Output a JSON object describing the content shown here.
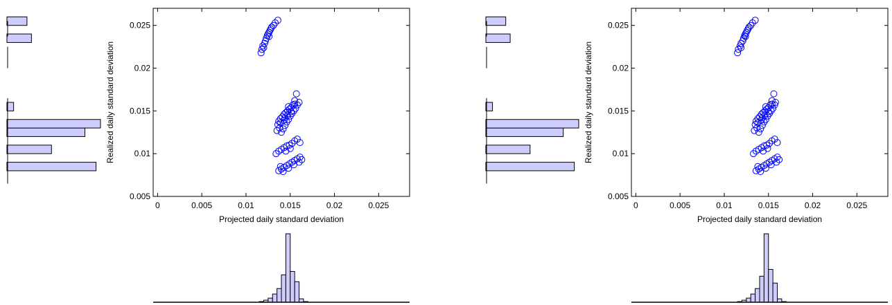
{
  "chart_data": [
    {
      "type": "scatter",
      "xlabel": "Projected daily standard deviation",
      "ylabel": "Realized daily standard deviation",
      "xlim": [
        -0.0005,
        0.0285
      ],
      "ylim": [
        0.005,
        0.027
      ],
      "xticks": [
        0,
        0.005,
        0.01,
        0.015,
        0.02,
        0.025
      ],
      "xtick_labels": [
        "0",
        "0.005",
        "0.01",
        "0.015",
        "0.02",
        "0.025"
      ],
      "yticks": [
        0.005,
        0.01,
        0.015,
        0.02,
        0.025
      ],
      "ytick_labels": [
        "0.005",
        "0.01",
        "0.015",
        "0.02",
        "0.025"
      ],
      "grid": false,
      "marker": "circle",
      "marker_color": "#0000ff",
      "clusters": [
        {
          "points": [
            [
              0.0118,
              0.0222
            ],
            [
              0.0119,
              0.0226
            ],
            [
              0.0121,
              0.0229
            ],
            [
              0.0122,
              0.0232
            ],
            [
              0.0123,
              0.0235
            ],
            [
              0.0124,
              0.0238
            ],
            [
              0.0125,
              0.024
            ],
            [
              0.0126,
              0.0242
            ],
            [
              0.0127,
              0.0244
            ],
            [
              0.0128,
              0.0246
            ],
            [
              0.0129,
              0.0248
            ],
            [
              0.0131,
              0.025
            ],
            [
              0.0133,
              0.0253
            ],
            [
              0.0136,
              0.0256
            ],
            [
              0.0117,
              0.0218
            ],
            [
              0.012,
              0.0224
            ],
            [
              0.0126,
              0.0237
            ]
          ]
        },
        {
          "points": [
            [
              0.014,
              0.0125
            ],
            [
              0.0138,
              0.013
            ],
            [
              0.0136,
              0.0134
            ],
            [
              0.0137,
              0.0138
            ],
            [
              0.0139,
              0.0141
            ],
            [
              0.0141,
              0.0143
            ],
            [
              0.0143,
              0.0146
            ],
            [
              0.0145,
              0.0148
            ],
            [
              0.0147,
              0.015
            ],
            [
              0.0149,
              0.0152
            ],
            [
              0.0151,
              0.0154
            ],
            [
              0.0153,
              0.0157
            ],
            [
              0.0155,
              0.0162
            ],
            [
              0.0157,
              0.017
            ],
            [
              0.0142,
              0.0129
            ],
            [
              0.0144,
              0.0133
            ],
            [
              0.0146,
              0.0137
            ],
            [
              0.0148,
              0.014
            ],
            [
              0.015,
              0.0144
            ],
            [
              0.0152,
              0.0147
            ],
            [
              0.0154,
              0.015
            ],
            [
              0.0156,
              0.0153
            ],
            [
              0.0158,
              0.0157
            ],
            [
              0.016,
              0.016
            ],
            [
              0.0135,
              0.0127
            ],
            [
              0.0139,
              0.0136
            ],
            [
              0.0143,
              0.0139
            ],
            [
              0.0147,
              0.0145
            ],
            [
              0.0151,
              0.0149
            ],
            [
              0.0155,
              0.0158
            ],
            [
              0.0144,
              0.0142
            ],
            [
              0.0148,
              0.0155
            ]
          ]
        },
        {
          "points": [
            [
              0.0134,
              0.01
            ],
            [
              0.0137,
              0.0103
            ],
            [
              0.014,
              0.0105
            ],
            [
              0.0143,
              0.0107
            ],
            [
              0.0146,
              0.0109
            ],
            [
              0.0149,
              0.011
            ],
            [
              0.0152,
              0.0112
            ],
            [
              0.0155,
              0.0115
            ],
            [
              0.0158,
              0.0117
            ],
            [
              0.0161,
              0.0113
            ],
            [
              0.0145,
              0.0103
            ],
            [
              0.015,
              0.0106
            ]
          ]
        },
        {
          "points": [
            [
              0.0137,
              0.008
            ],
            [
              0.014,
              0.0082
            ],
            [
              0.0143,
              0.0084
            ],
            [
              0.0146,
              0.0086
            ],
            [
              0.0149,
              0.0088
            ],
            [
              0.0152,
              0.009
            ],
            [
              0.0155,
              0.0092
            ],
            [
              0.0158,
              0.0094
            ],
            [
              0.0161,
              0.0096
            ],
            [
              0.0163,
              0.0093
            ],
            [
              0.0142,
              0.0079
            ],
            [
              0.0148,
              0.0083
            ],
            [
              0.0154,
              0.0087
            ],
            [
              0.016,
              0.009
            ],
            [
              0.0139,
              0.0085
            ]
          ]
        }
      ]
    },
    {
      "type": "scatter",
      "xlabel": "Projected daily standard deviation",
      "ylabel": "Realized daily standard deviation",
      "xlim": [
        -0.0005,
        0.0285
      ],
      "ylim": [
        0.005,
        0.027
      ],
      "xticks": [
        0,
        0.005,
        0.01,
        0.015,
        0.02,
        0.025
      ],
      "xtick_labels": [
        "0",
        "0.005",
        "0.01",
        "0.015",
        "0.02",
        "0.025"
      ],
      "yticks": [
        0.005,
        0.01,
        0.015,
        0.02,
        0.025
      ],
      "ytick_labels": [
        "0.005",
        "0.01",
        "0.015",
        "0.02",
        "0.025"
      ],
      "grid": false,
      "marker": "circle",
      "marker_color": "#0000ff",
      "clusters": [
        {
          "points": [
            [
              0.0116,
              0.0222
            ],
            [
              0.0118,
              0.0226
            ],
            [
              0.0119,
              0.0229
            ],
            [
              0.0121,
              0.0232
            ],
            [
              0.0122,
              0.0235
            ],
            [
              0.0123,
              0.0238
            ],
            [
              0.0124,
              0.024
            ],
            [
              0.0125,
              0.0242
            ],
            [
              0.0126,
              0.0244
            ],
            [
              0.0127,
              0.0246
            ],
            [
              0.0128,
              0.0248
            ],
            [
              0.013,
              0.025
            ],
            [
              0.0132,
              0.0253
            ],
            [
              0.0135,
              0.0256
            ],
            [
              0.0115,
              0.0218
            ],
            [
              0.0119,
              0.0224
            ],
            [
              0.0124,
              0.0237
            ]
          ]
        },
        {
          "points": [
            [
              0.0139,
              0.0125
            ],
            [
              0.0137,
              0.013
            ],
            [
              0.0135,
              0.0134
            ],
            [
              0.0136,
              0.0138
            ],
            [
              0.0138,
              0.0141
            ],
            [
              0.014,
              0.0143
            ],
            [
              0.0142,
              0.0146
            ],
            [
              0.0144,
              0.0148
            ],
            [
              0.0146,
              0.015
            ],
            [
              0.0148,
              0.0152
            ],
            [
              0.015,
              0.0154
            ],
            [
              0.0152,
              0.0157
            ],
            [
              0.0154,
              0.0162
            ],
            [
              0.0156,
              0.017
            ],
            [
              0.0141,
              0.0129
            ],
            [
              0.0143,
              0.0133
            ],
            [
              0.0145,
              0.0137
            ],
            [
              0.0147,
              0.014
            ],
            [
              0.0149,
              0.0144
            ],
            [
              0.0151,
              0.0147
            ],
            [
              0.0153,
              0.015
            ],
            [
              0.0155,
              0.0153
            ],
            [
              0.0157,
              0.0157
            ],
            [
              0.0158,
              0.016
            ],
            [
              0.0134,
              0.0127
            ],
            [
              0.0138,
              0.0136
            ],
            [
              0.0142,
              0.0139
            ],
            [
              0.0146,
              0.0145
            ],
            [
              0.015,
              0.0149
            ],
            [
              0.0154,
              0.0158
            ],
            [
              0.0143,
              0.0142
            ],
            [
              0.0147,
              0.0155
            ]
          ]
        },
        {
          "points": [
            [
              0.0133,
              0.01
            ],
            [
              0.0136,
              0.0103
            ],
            [
              0.0139,
              0.0105
            ],
            [
              0.0142,
              0.0107
            ],
            [
              0.0145,
              0.0109
            ],
            [
              0.0148,
              0.011
            ],
            [
              0.0151,
              0.0112
            ],
            [
              0.0154,
              0.0115
            ],
            [
              0.0157,
              0.0117
            ],
            [
              0.016,
              0.0113
            ],
            [
              0.0144,
              0.0103
            ],
            [
              0.0149,
              0.0106
            ]
          ]
        },
        {
          "points": [
            [
              0.0136,
              0.008
            ],
            [
              0.0139,
              0.0082
            ],
            [
              0.0142,
              0.0084
            ],
            [
              0.0145,
              0.0086
            ],
            [
              0.0148,
              0.0088
            ],
            [
              0.0151,
              0.009
            ],
            [
              0.0154,
              0.0092
            ],
            [
              0.0157,
              0.0094
            ],
            [
              0.016,
              0.0096
            ],
            [
              0.0162,
              0.0093
            ],
            [
              0.0141,
              0.0079
            ],
            [
              0.0147,
              0.0083
            ],
            [
              0.0153,
              0.0087
            ],
            [
              0.0159,
              0.009
            ],
            [
              0.0138,
              0.0085
            ]
          ]
        }
      ]
    },
    {
      "type": "bar",
      "orientation": "horizontal",
      "role": "marginal histogram of realized standard deviation (left of chart 1)",
      "bins": [
        [
          0.007,
          0.008
        ],
        [
          0.008,
          0.009
        ],
        [
          0.009,
          0.01
        ],
        [
          0.01,
          0.011
        ],
        [
          0.011,
          0.012
        ],
        [
          0.012,
          0.013
        ],
        [
          0.013,
          0.014
        ],
        [
          0.014,
          0.015
        ],
        [
          0.015,
          0.016
        ],
        [
          0.016,
          0.017
        ],
        [
          0.017,
          0.018
        ],
        [
          0.018,
          0.019
        ],
        [
          0.019,
          0.02
        ],
        [
          0.02,
          0.021
        ],
        [
          0.021,
          0.022
        ],
        [
          0.022,
          0.023
        ],
        [
          0.023,
          0.024
        ],
        [
          0.024,
          0.025
        ],
        [
          0.025,
          0.026
        ]
      ],
      "values": [
        0,
        40,
        0,
        20,
        0,
        35,
        42,
        0,
        3,
        0,
        0,
        0,
        0,
        0,
        0,
        0,
        11,
        0,
        9
      ],
      "bar_color": "#ccccff",
      "edge_color": "#000000"
    },
    {
      "type": "bar",
      "orientation": "vertical",
      "role": "marginal histogram of projected standard deviation (below chart 1)",
      "bin_width": 0.0005,
      "bin_starts": [
        0.0115,
        0.012,
        0.0125,
        0.013,
        0.0135,
        0.014,
        0.0145,
        0.015,
        0.0155,
        0.016,
        0.0165
      ],
      "values": [
        1,
        3,
        6,
        12,
        20,
        40,
        100,
        45,
        30,
        5,
        1
      ],
      "bar_color": "#ccccff",
      "edge_color": "#000000"
    },
    {
      "type": "bar",
      "orientation": "horizontal",
      "role": "marginal histogram of realized standard deviation (left of chart 2)",
      "bins": [
        [
          0.007,
          0.008
        ],
        [
          0.008,
          0.009
        ],
        [
          0.009,
          0.01
        ],
        [
          0.01,
          0.011
        ],
        [
          0.011,
          0.012
        ],
        [
          0.012,
          0.013
        ],
        [
          0.013,
          0.014
        ],
        [
          0.014,
          0.015
        ],
        [
          0.015,
          0.016
        ],
        [
          0.016,
          0.017
        ],
        [
          0.017,
          0.018
        ],
        [
          0.018,
          0.019
        ],
        [
          0.019,
          0.02
        ],
        [
          0.02,
          0.021
        ],
        [
          0.021,
          0.022
        ],
        [
          0.022,
          0.023
        ],
        [
          0.023,
          0.024
        ],
        [
          0.024,
          0.025
        ],
        [
          0.025,
          0.026
        ]
      ],
      "values": [
        0,
        40,
        0,
        20,
        0,
        35,
        42,
        0,
        3,
        0,
        0,
        0,
        0,
        0,
        0,
        0,
        11,
        0,
        9
      ],
      "bar_color": "#ccccff",
      "edge_color": "#000000"
    },
    {
      "type": "bar",
      "orientation": "vertical",
      "role": "marginal histogram of projected standard deviation (below chart 2)",
      "bin_width": 0.0005,
      "bin_starts": [
        0.0115,
        0.012,
        0.0125,
        0.013,
        0.0135,
        0.014,
        0.0145,
        0.015,
        0.0155,
        0.016,
        0.0165
      ],
      "values": [
        1,
        3,
        6,
        12,
        20,
        38,
        100,
        48,
        28,
        5,
        1
      ],
      "bar_color": "#ccccff",
      "edge_color": "#000000"
    }
  ]
}
